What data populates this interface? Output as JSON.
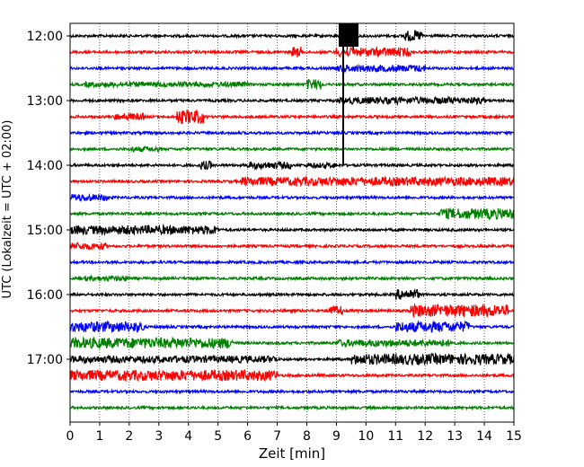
{
  "chart_data": {
    "type": "line",
    "title": "",
    "xlabel": "Zeit  [min]",
    "ylabel": "UTC (Lokalzeit = UTC + 02:00)",
    "xlim": [
      0,
      15
    ],
    "x_ticks": [
      "0",
      "1",
      "2",
      "3",
      "4",
      "5",
      "6",
      "7",
      "8",
      "9",
      "10",
      "11",
      "12",
      "13",
      "14",
      "15"
    ],
    "y_ticks": [
      "12:00",
      "13:00",
      "14:00",
      "15:00",
      "16:00",
      "17:00"
    ],
    "trace_interval_min": 15,
    "start_time": "12:00",
    "grid": "vertical-dotted",
    "color_cycle": [
      "#000000",
      "#ff0000",
      "#0000ff",
      "#008000"
    ],
    "traces": [
      {
        "start": "12:00",
        "color": "#000000",
        "activity": [
          [
            1.0,
            9.3,
            9.6
          ],
          [
            0.3,
            11.3,
            11.9
          ]
        ]
      },
      {
        "start": "12:15",
        "color": "#ff0000",
        "activity": [
          [
            0.3,
            7.5,
            7.8
          ],
          [
            0.25,
            9.0,
            11.5
          ]
        ]
      },
      {
        "start": "12:30",
        "color": "#0000ff",
        "activity": [
          [
            0.2,
            9.0,
            12.0
          ]
        ]
      },
      {
        "start": "12:45",
        "color": "#008000",
        "activity": [
          [
            0.3,
            8.0,
            8.5
          ],
          [
            0.15,
            0.5,
            6.0
          ]
        ]
      },
      {
        "start": "13:00",
        "color": "#000000",
        "activity": [
          [
            0.2,
            9.0,
            14.0
          ]
        ]
      },
      {
        "start": "13:15",
        "color": "#ff0000",
        "activity": [
          [
            0.4,
            3.6,
            4.5
          ],
          [
            0.2,
            1.5,
            2.5
          ]
        ]
      },
      {
        "start": "13:30",
        "color": "#0000ff",
        "activity": []
      },
      {
        "start": "13:45",
        "color": "#008000",
        "activity": [
          [
            0.15,
            2.0,
            3.0
          ]
        ]
      },
      {
        "start": "14:00",
        "color": "#000000",
        "activity": [
          [
            0.25,
            4.4,
            4.8
          ],
          [
            0.2,
            6.0,
            7.5
          ],
          [
            0.15,
            8.0,
            9.0
          ]
        ]
      },
      {
        "start": "14:15",
        "color": "#ff0000",
        "activity": [
          [
            0.25,
            5.8,
            15.0
          ]
        ]
      },
      {
        "start": "14:30",
        "color": "#0000ff",
        "activity": [
          [
            0.2,
            0.0,
            1.3
          ]
        ]
      },
      {
        "start": "14:45",
        "color": "#008000",
        "activity": [
          [
            0.3,
            12.5,
            15.0
          ]
        ]
      },
      {
        "start": "15:00",
        "color": "#000000",
        "activity": [
          [
            0.25,
            0.0,
            5.0
          ]
        ]
      },
      {
        "start": "15:15",
        "color": "#ff0000",
        "activity": [
          [
            0.2,
            0.0,
            1.2
          ]
        ]
      },
      {
        "start": "15:30",
        "color": "#0000ff",
        "activity": []
      },
      {
        "start": "15:45",
        "color": "#008000",
        "activity": [
          [
            0.15,
            0.5,
            2.0
          ]
        ]
      },
      {
        "start": "16:00",
        "color": "#000000",
        "activity": [
          [
            0.3,
            11.0,
            11.8
          ]
        ]
      },
      {
        "start": "16:15",
        "color": "#ff0000",
        "activity": [
          [
            0.35,
            11.5,
            14.8
          ],
          [
            0.3,
            8.7,
            9.2
          ]
        ]
      },
      {
        "start": "16:30",
        "color": "#0000ff",
        "activity": [
          [
            0.3,
            0.0,
            2.5
          ],
          [
            0.3,
            11.0,
            13.5
          ]
        ]
      },
      {
        "start": "16:45",
        "color": "#008000",
        "activity": [
          [
            0.3,
            0.0,
            5.5
          ],
          [
            0.2,
            9.0,
            13.0
          ]
        ]
      },
      {
        "start": "17:00",
        "color": "#000000",
        "activity": [
          [
            0.3,
            9.5,
            15.0
          ],
          [
            0.2,
            0.0,
            7.0
          ]
        ]
      },
      {
        "start": "17:15",
        "color": "#ff0000",
        "activity": [
          [
            0.3,
            0.0,
            7.0
          ]
        ]
      },
      {
        "start": "17:30",
        "color": "#0000ff",
        "activity": []
      },
      {
        "start": "17:45",
        "color": "#008000",
        "activity": []
      }
    ]
  }
}
